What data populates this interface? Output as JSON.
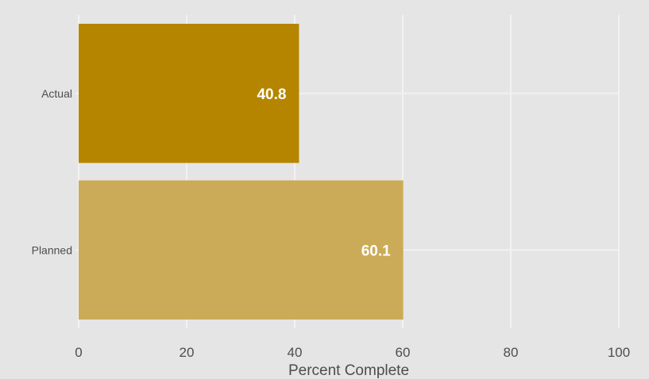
{
  "chart_data": {
    "type": "bar",
    "orientation": "horizontal",
    "title": "",
    "xlabel": "Percent Complete",
    "ylabel": "",
    "categories": [
      "Actual",
      "Planned"
    ],
    "values": [
      40.8,
      60.1
    ],
    "value_labels": [
      "40.8",
      "60.1"
    ],
    "xlim": [
      0,
      100
    ],
    "xticks": [
      "0",
      "20",
      "40",
      "60",
      "80",
      "100"
    ],
    "grid": true,
    "legend": "none",
    "colors": {
      "background": "#e5e5e5",
      "grid": "#f2f2f2",
      "bars": [
        "#b58500",
        "#cbab57"
      ],
      "data_label": "#ffffff",
      "text": "#4d4d4d"
    }
  }
}
